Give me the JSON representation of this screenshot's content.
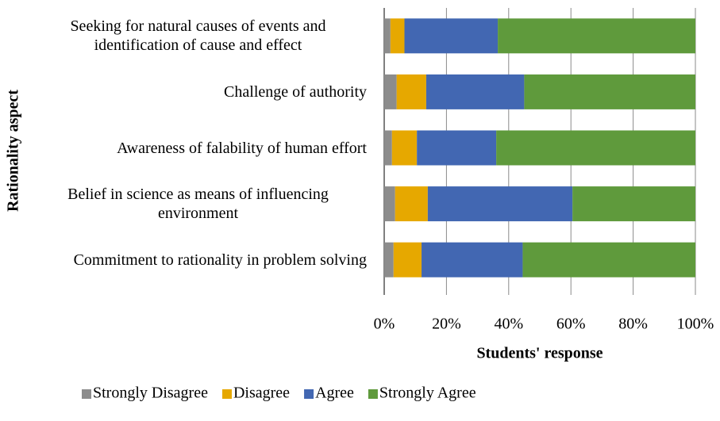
{
  "chart_data": {
    "type": "stacked_barh",
    "x_label": "Students' response",
    "y_label": "Rationality aspect",
    "categories": [
      "Seeking for natural causes of events and identification of cause and effect",
      "Challenge of authority",
      "Awareness of falability of human effort",
      "Belief in science as means of influencing environment",
      "Commitment to rationality in problem solving"
    ],
    "series": [
      {
        "name": "Strongly Disagree",
        "color": "#8c8c8c",
        "values": [
          2,
          4,
          2.5,
          3.5,
          3
        ]
      },
      {
        "name": "Disagree",
        "color": "#e6a800",
        "values": [
          4.5,
          9.5,
          8,
          10.5,
          9
        ]
      },
      {
        "name": "Agree",
        "color": "#4267b2",
        "values": [
          30,
          31.5,
          25.5,
          46.5,
          32.5
        ]
      },
      {
        "name": "Strongly Agree",
        "color": "#5f9a3c",
        "values": [
          63.5,
          55,
          64,
          39.5,
          55.5
        ]
      }
    ],
    "xlim": [
      0,
      100
    ],
    "xticks": [
      {
        "value": 0,
        "label": "0%"
      },
      {
        "value": 20,
        "label": "20%"
      },
      {
        "value": 40,
        "label": "40%"
      },
      {
        "value": 60,
        "label": "60%"
      },
      {
        "value": 80,
        "label": "80%"
      },
      {
        "value": 100,
        "label": "100%"
      }
    ],
    "grid": true,
    "legend": "bottom"
  }
}
